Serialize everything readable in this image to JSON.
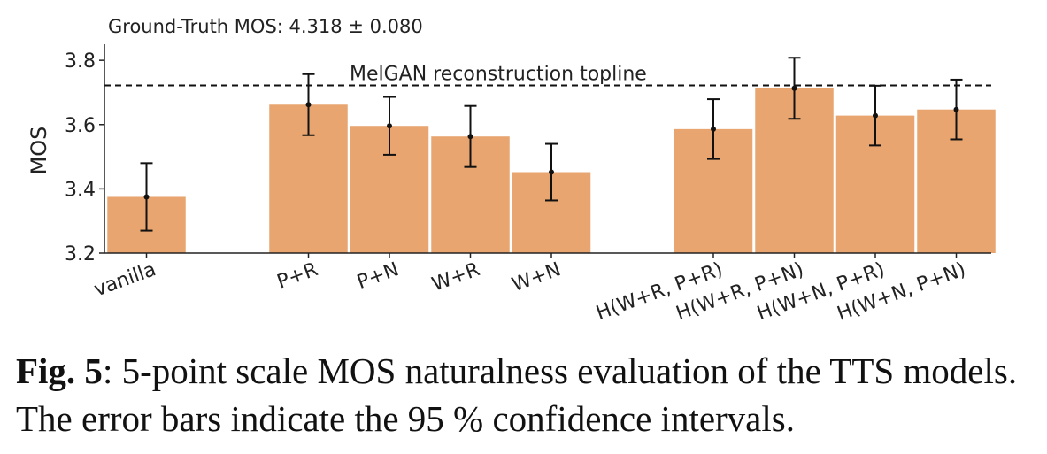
{
  "chart_data": {
    "type": "bar",
    "subtitle": "Ground-Truth MOS: 4.318 ± 0.080",
    "xlabel": "",
    "ylabel": "MOS",
    "ylim": [
      3.2,
      3.85
    ],
    "yticks": [
      "3.2",
      "3.4",
      "3.6",
      "3.8"
    ],
    "categories": [
      "vanilla",
      "P+R",
      "P+N",
      "W+R",
      "W+N",
      "H(W+R, P+R)",
      "H(W+R, P+N)",
      "H(W+N, P+R)",
      "H(W+N, P+N)"
    ],
    "values": [
      3.375,
      3.662,
      3.596,
      3.563,
      3.452,
      3.586,
      3.713,
      3.628,
      3.647
    ],
    "error": [
      0.105,
      0.095,
      0.09,
      0.095,
      0.088,
      0.093,
      0.095,
      0.093,
      0.093
    ],
    "reference_line": {
      "label": "MelGAN reconstruction topline",
      "value": 3.722
    },
    "bar_color": "#E8A56F",
    "grid": false
  },
  "caption": {
    "label": "Fig. 5",
    "text": ": 5-point scale MOS naturalness evaluation of the TTS models. The error bars indicate the 95 % confidence intervals."
  }
}
